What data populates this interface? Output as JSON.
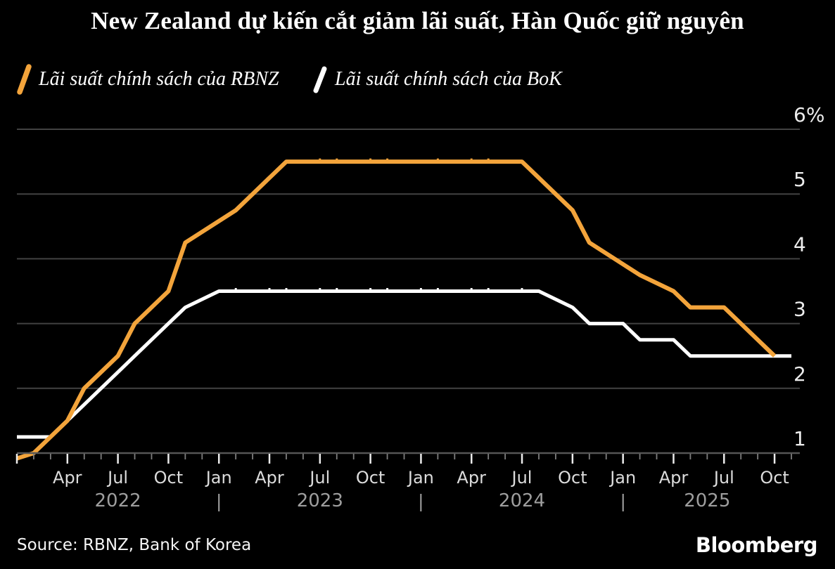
{
  "title": "New Zealand dự kiến cắt giảm lãi suất, Hàn Quốc giữ nguyên",
  "legend": {
    "items": [
      {
        "label": "Lãi suất chính sách của RBNZ",
        "color": "#F3A43B"
      },
      {
        "label": "Lãi suất chính sách của BoK",
        "color": "#FFFFFF"
      }
    ]
  },
  "chart_data": {
    "type": "line",
    "unit": "%",
    "ylim": [
      1,
      6
    ],
    "grid": "horizontal",
    "x_range": {
      "start": "2022-01",
      "end": "2025-11"
    },
    "y_ticks": [
      {
        "value": 6,
        "label": "6%"
      },
      {
        "value": 5,
        "label": "5"
      },
      {
        "value": 4,
        "label": "4"
      },
      {
        "value": 3,
        "label": "3"
      },
      {
        "value": 2,
        "label": "2"
      },
      {
        "value": 1,
        "label": "1"
      }
    ],
    "x_month_ticks": [
      {
        "date": "2022-04",
        "label": "Apr"
      },
      {
        "date": "2022-07",
        "label": "Jul"
      },
      {
        "date": "2022-10",
        "label": "Oct"
      },
      {
        "date": "2023-01",
        "label": "Jan"
      },
      {
        "date": "2023-04",
        "label": "Apr"
      },
      {
        "date": "2023-07",
        "label": "Jul"
      },
      {
        "date": "2023-10",
        "label": "Oct"
      },
      {
        "date": "2024-01",
        "label": "Jan"
      },
      {
        "date": "2024-04",
        "label": "Apr"
      },
      {
        "date": "2024-07",
        "label": "Jul"
      },
      {
        "date": "2024-10",
        "label": "Oct"
      },
      {
        "date": "2025-01",
        "label": "Jan"
      },
      {
        "date": "2025-04",
        "label": "Apr"
      },
      {
        "date": "2025-07",
        "label": "Jul"
      },
      {
        "date": "2025-10",
        "label": "Oct"
      }
    ],
    "year_labels": [
      {
        "label": "2022",
        "center_date": "2022-07"
      },
      {
        "label": "2023",
        "center_date": "2023-07"
      },
      {
        "label": "2024",
        "center_date": "2024-07"
      },
      {
        "label": "2025",
        "center_date": "2025-06"
      }
    ],
    "year_separators": [
      "2023-01",
      "2024-01",
      "2025-01"
    ],
    "series": [
      {
        "id": "bok",
        "name": "Lãi suất chính sách của BoK",
        "color": "#FFFFFF",
        "points": [
          [
            "2022-01",
            1.25
          ],
          [
            "2022-03",
            1.25
          ],
          [
            "2022-04",
            1.5
          ],
          [
            "2022-05",
            1.75
          ],
          [
            "2022-07",
            2.25
          ],
          [
            "2022-08",
            2.5
          ],
          [
            "2022-10",
            3.0
          ],
          [
            "2022-11",
            3.25
          ],
          [
            "2023-01",
            3.5
          ],
          [
            "2024-08",
            3.5
          ],
          [
            "2024-10",
            3.25
          ],
          [
            "2024-11",
            3.0
          ],
          [
            "2025-01",
            3.0
          ],
          [
            "2025-02",
            2.75
          ],
          [
            "2025-04",
            2.75
          ],
          [
            "2025-05",
            2.5
          ],
          [
            "2025-11",
            2.5
          ]
        ],
        "hold_markers": [
          "2023-02",
          "2023-04",
          "2023-05",
          "2023-07",
          "2023-08",
          "2023-10",
          "2023-11",
          "2024-01",
          "2024-02",
          "2024-04",
          "2024-05",
          "2024-07"
        ]
      },
      {
        "id": "rbnz",
        "name": "Lãi suất chính sách của RBNZ",
        "color": "#F3A43B",
        "points": [
          [
            "2021-11",
            0.75
          ],
          [
            "2022-02",
            1.0
          ],
          [
            "2022-04",
            1.5
          ],
          [
            "2022-05",
            2.0
          ],
          [
            "2022-07",
            2.5
          ],
          [
            "2022-08",
            3.0
          ],
          [
            "2022-10",
            3.5
          ],
          [
            "2022-11",
            4.25
          ],
          [
            "2023-02",
            4.75
          ],
          [
            "2023-04",
            5.25
          ],
          [
            "2023-05",
            5.5
          ],
          [
            "2024-07",
            5.5
          ],
          [
            "2024-08",
            5.25
          ],
          [
            "2024-10",
            4.75
          ],
          [
            "2024-11",
            4.25
          ],
          [
            "2025-02",
            3.75
          ],
          [
            "2025-04",
            3.5
          ],
          [
            "2025-05",
            3.25
          ],
          [
            "2025-07",
            3.25
          ],
          [
            "2025-08",
            3.0
          ],
          [
            "2025-10",
            2.5
          ]
        ],
        "hold_markers": [
          "2023-07",
          "2023-08",
          "2023-10",
          "2023-11",
          "2024-02",
          "2024-04",
          "2024-05"
        ]
      }
    ],
    "colors": {
      "background": "#000000",
      "gridline": "#424242",
      "baseline": "#555555",
      "tick_major": "#ECECEC",
      "tick_minor": "#7D7D7D",
      "y_label": "#EDEDED",
      "month_label": "#DCDCDC",
      "year_label": "#9E9E9E"
    }
  },
  "source": "Source: RBNZ, Bank of Korea",
  "brand": "Bloomberg"
}
